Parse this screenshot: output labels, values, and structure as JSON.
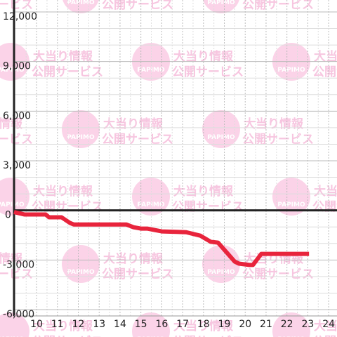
{
  "chart_data": {
    "type": "line",
    "watermark": {
      "line1": "大当り情報",
      "line2": "公開サービス",
      "logo": "PAPIMO"
    },
    "x": [
      8.92,
      9.43,
      10.44,
      10.6,
      11.2,
      11.6,
      11.78,
      14.3,
      14.65,
      15.0,
      15.3,
      16.0,
      17.17,
      17.85,
      18.35,
      18.7,
      19.5,
      19.7,
      20.2,
      20.37,
      20.77,
      23.06
    ],
    "series": [
      {
        "color": "#e8243c",
        "values": [
          -100,
          -250,
          -250,
          -420,
          -420,
          -760,
          -850,
          -850,
          -1020,
          -1100,
          -1100,
          -1270,
          -1320,
          -1530,
          -1900,
          -1950,
          -3100,
          -3220,
          -3300,
          -3300,
          -2630,
          -2630
        ]
      }
    ],
    "xlim": [
      8.92,
      24.4
    ],
    "ylim": [
      -6000,
      12000
    ],
    "xticks": [
      10,
      11,
      12,
      13,
      14,
      15,
      16,
      17,
      18,
      19,
      20,
      21,
      22,
      23,
      24
    ],
    "yticks": [
      {
        "value": -6000,
        "label": "-6,000"
      },
      {
        "value": -3000,
        "label": "-3,000"
      },
      0,
      {
        "value": 3000,
        "label": "3,000"
      },
      {
        "value": 6000,
        "label": "6,000"
      },
      {
        "value": 9000,
        "label": "9,000"
      },
      {
        "value": 12000,
        "label": "12,000"
      }
    ],
    "grid": true
  }
}
